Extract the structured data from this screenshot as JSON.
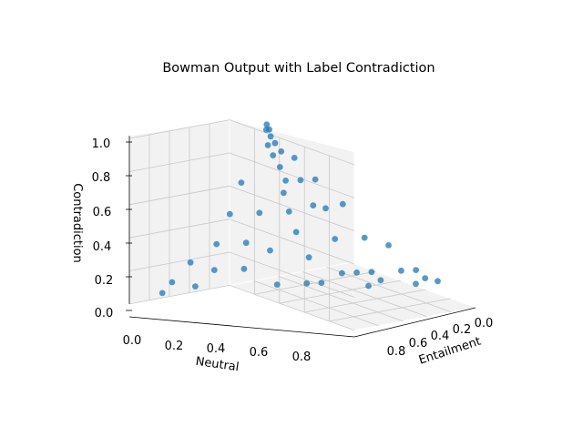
{
  "chart_data": {
    "type": "scatter",
    "projection": "3d",
    "title": "Bowman Output with Label Contradiction",
    "xlabel": "Neutral",
    "ylabel": "Entailment",
    "zlabel": "Contradiction",
    "xticks": [
      "0.0",
      "0.2",
      "0.4",
      "0.6",
      "0.8"
    ],
    "yticks": [
      "0.0",
      "0.2",
      "0.4",
      "0.6",
      "0.8"
    ],
    "zticks": [
      "0.0",
      "0.2",
      "0.4",
      "0.6",
      "0.8",
      "1.0"
    ],
    "xlim": [
      0,
      1
    ],
    "ylim": [
      0,
      1
    ],
    "zlim": [
      0,
      1
    ],
    "grid": true,
    "point_color": "#1f77b4",
    "pane_color": "#f2f2f2",
    "grid_color": "#c8c8c8",
    "constraint": "Neutral + Entailment + Contradiction = 1",
    "distribution": "points concentrated near Contradiction = 1 and spread thinly across the simplex toward the Neutral and Entailment corners",
    "series": [
      {
        "points": [
          [
            0.01,
            0.01,
            0.98
          ],
          [
            0.02,
            0.03,
            0.95
          ],
          [
            0.03,
            0.02,
            0.95
          ],
          [
            0.05,
            0.04,
            0.91
          ],
          [
            0.06,
            0.08,
            0.86
          ],
          [
            0.08,
            0.05,
            0.87
          ],
          [
            0.1,
            0.1,
            0.8
          ],
          [
            0.12,
            0.06,
            0.82
          ],
          [
            0.15,
            0.12,
            0.73
          ],
          [
            0.18,
            0.04,
            0.78
          ],
          [
            0.2,
            0.15,
            0.65
          ],
          [
            0.22,
            0.2,
            0.58
          ],
          [
            0.25,
            0.1,
            0.65
          ],
          [
            0.28,
            0.25,
            0.47
          ],
          [
            0.3,
            0.05,
            0.65
          ],
          [
            0.35,
            0.3,
            0.35
          ],
          [
            0.4,
            0.12,
            0.48
          ],
          [
            0.45,
            0.35,
            0.2
          ],
          [
            0.5,
            0.2,
            0.3
          ],
          [
            0.55,
            0.4,
            0.05
          ],
          [
            0.6,
            0.1,
            0.3
          ],
          [
            0.65,
            0.25,
            0.1
          ],
          [
            0.7,
            0.05,
            0.25
          ],
          [
            0.75,
            0.2,
            0.05
          ],
          [
            0.8,
            0.1,
            0.1
          ],
          [
            0.85,
            0.05,
            0.1
          ],
          [
            0.9,
            0.05,
            0.05
          ],
          [
            0.95,
            0.02,
            0.03
          ],
          [
            0.05,
            0.3,
            0.65
          ],
          [
            0.08,
            0.45,
            0.47
          ],
          [
            0.1,
            0.6,
            0.3
          ],
          [
            0.05,
            0.75,
            0.2
          ],
          [
            0.03,
            0.88,
            0.09
          ],
          [
            0.02,
            0.95,
            0.03
          ],
          [
            0.15,
            0.7,
            0.15
          ],
          [
            0.2,
            0.5,
            0.3
          ],
          [
            0.25,
            0.6,
            0.15
          ],
          [
            0.3,
            0.45,
            0.25
          ],
          [
            0.12,
            0.82,
            0.06
          ],
          [
            0.4,
            0.55,
            0.05
          ],
          [
            0.35,
            0.15,
            0.5
          ],
          [
            0.45,
            0.05,
            0.5
          ],
          [
            0.18,
            0.35,
            0.47
          ],
          [
            0.5,
            0.45,
            0.05
          ],
          [
            0.6,
            0.3,
            0.1
          ],
          [
            0.7,
            0.2,
            0.1
          ],
          [
            0.72,
            0.26,
            0.02
          ],
          [
            0.88,
            0.1,
            0.02
          ]
        ]
      }
    ]
  }
}
